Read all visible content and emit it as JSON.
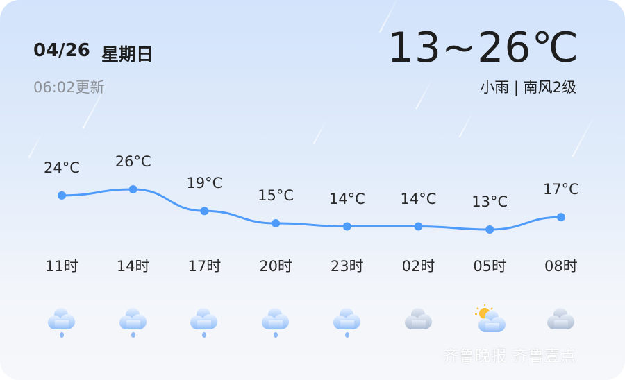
{
  "header": {
    "date": "04/26",
    "weekday": "星期日",
    "update_time": "06:02更新",
    "temp_range": "13~26℃",
    "condition": "小雨 | 南风2级"
  },
  "chart_data": {
    "type": "line",
    "categories": [
      "11时",
      "14时",
      "17时",
      "20时",
      "23时",
      "02时",
      "05时",
      "08时"
    ],
    "values": [
      24,
      26,
      19,
      15,
      14,
      14,
      13,
      17
    ],
    "labels": [
      "24°C",
      "26°C",
      "19°C",
      "15°C",
      "14°C",
      "14°C",
      "13°C",
      "17°C"
    ],
    "line_color": "#4f9bfa",
    "grid": false
  },
  "icons": [
    "light-rain",
    "light-rain",
    "light-rain",
    "light-rain",
    "light-rain",
    "cloudy",
    "partly-cloudy",
    "cloudy"
  ],
  "watermark": "齐鲁晚报 齐鲁壹点"
}
